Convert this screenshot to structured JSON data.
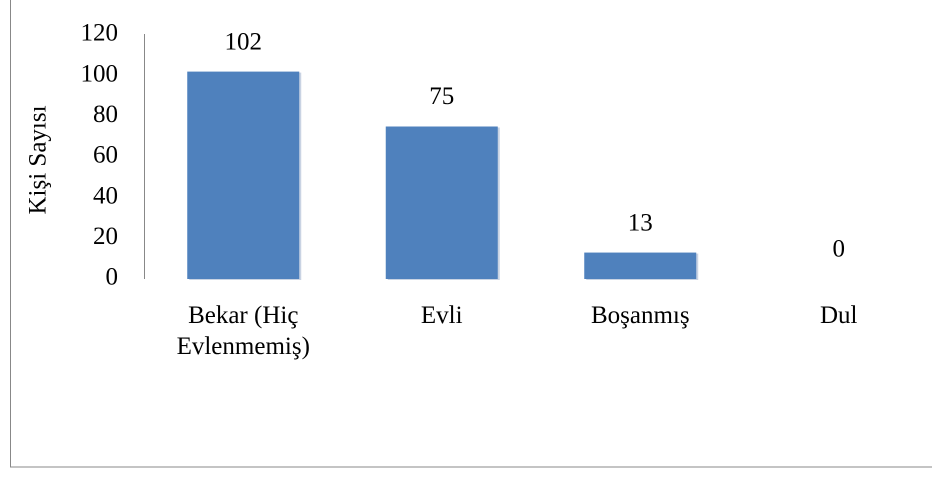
{
  "chart_data": {
    "type": "bar",
    "y_label": "Kişi Sayısı",
    "categories": [
      "Bekar (Hiç Evlenmemiş)",
      "Evli",
      "Boşanmış",
      "Dul"
    ],
    "values": [
      102,
      75,
      13,
      0
    ],
    "color": "#4f81bd",
    "ylim": [
      0,
      120
    ],
    "yticks": [
      0,
      20,
      40,
      60,
      80,
      100,
      120
    ]
  }
}
